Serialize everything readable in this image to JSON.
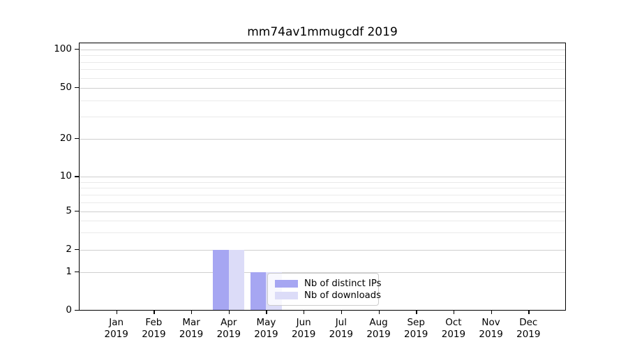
{
  "title": "mm74av1mmugcdf 2019",
  "chart_data": {
    "type": "bar",
    "title": "mm74av1mmugcdf 2019",
    "categories": [
      "Jan 2019",
      "Feb 2019",
      "Mar 2019",
      "Apr 2019",
      "May 2019",
      "Jun 2019",
      "Jul 2019",
      "Aug 2019",
      "Sep 2019",
      "Oct 2019",
      "Nov 2019",
      "Dec 2019"
    ],
    "series": [
      {
        "name": "Nb of distinct IPs",
        "color": "#a6a6f2",
        "values": [
          0,
          0,
          0,
          2,
          1,
          0,
          0,
          0,
          0,
          0,
          0,
          0
        ]
      },
      {
        "name": "Nb of downloads",
        "color": "#dcdcf8",
        "values": [
          0,
          0,
          0,
          2,
          1,
          0,
          0,
          0,
          0,
          0,
          0,
          0
        ]
      }
    ],
    "yscale": "symlog",
    "ylim": [
      0,
      110
    ],
    "yticks": [
      0,
      1,
      2,
      5,
      10,
      20,
      50,
      100
    ],
    "yminorticks": [
      3,
      4,
      6,
      7,
      8,
      9,
      30,
      40,
      60,
      70,
      80,
      90
    ],
    "grid": true,
    "legend_position": "inside-bottom-center"
  },
  "colors": {
    "major_grid": "#cfcfcf",
    "minor_grid": "#eaeaea",
    "axis": "#000000",
    "legend_border": "#cccccc"
  }
}
